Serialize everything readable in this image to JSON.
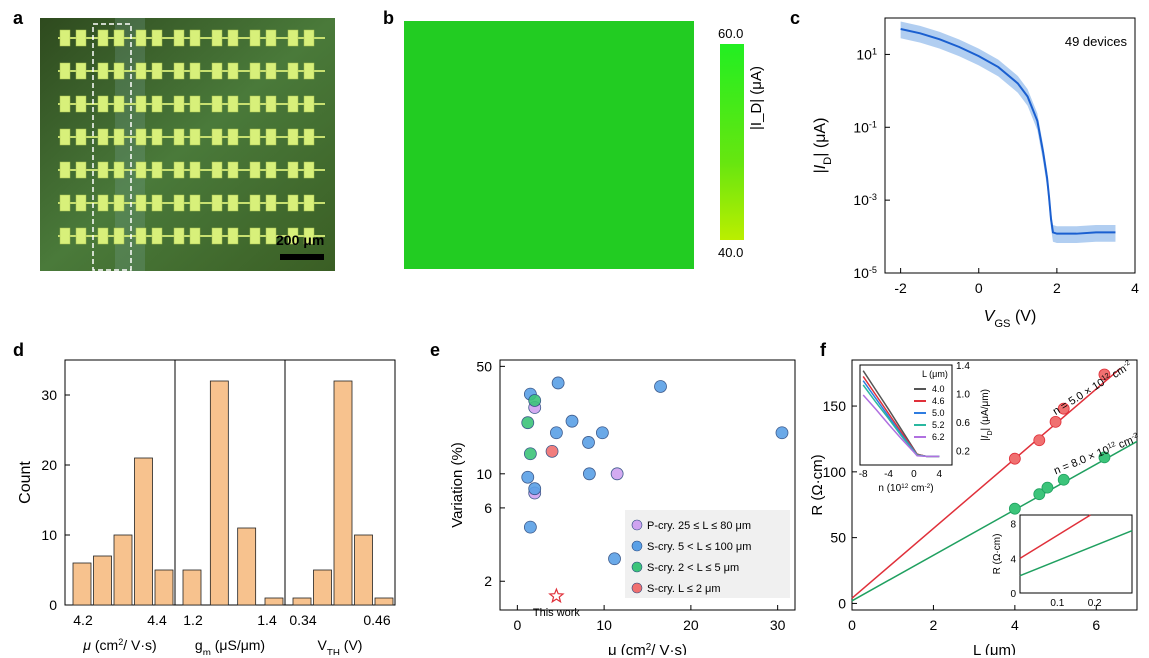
{
  "panel_labels": {
    "a": "a",
    "b": "b",
    "c": "c",
    "d": "d",
    "e": "e",
    "f": "f"
  },
  "colors": {
    "micro_bg": "#3a5a26",
    "map_green": "#22cc22",
    "cbar_top": "#22ee22",
    "cbar_bottom": "#bbee00",
    "curve_mean": "#1a5fd0",
    "curve_band": "#a9c9f0",
    "hist_fill": "#f7c28e",
    "hist_edge": "#222222",
    "purple": "#cfa3f0",
    "blue": "#5aa0e6",
    "green": "#3cc47a",
    "red": "#f07070",
    "fit_red": "#e0303a",
    "fit_green": "#20a060"
  },
  "panel_a": {
    "scale_bar_label": "200 μm",
    "rows": 7,
    "devices_per_row": 7
  },
  "panel_b": {
    "colorbar": {
      "max_label": "60.0",
      "min_label": "40.0",
      "label": "|I_D| (μA)"
    }
  },
  "chart_data": [
    {
      "panel": "c",
      "type": "line",
      "annotation": "49 devices",
      "xlabel": "V_GS (V)",
      "ylabel": "|I_D| (μA)",
      "xlim": [
        -2.4,
        4
      ],
      "ylim_log10": [
        -5,
        2
      ],
      "yscale": "log",
      "xticks": [
        -2,
        0,
        2,
        4
      ],
      "xtick_labels": [
        "-2",
        "0",
        "2",
        "4"
      ],
      "yticks_log10": [
        1,
        -1,
        -3,
        -5
      ],
      "ytick_labels": [
        "10",
        "10",
        "10",
        "10"
      ],
      "ytick_exponents": [
        "1",
        "-1",
        "-3",
        "-5"
      ],
      "series": [
        {
          "x": [
            -2,
            -1.5,
            -1,
            -0.5,
            0,
            0.5,
            1,
            1.25,
            1.5,
            1.65,
            1.75,
            1.8,
            1.85,
            1.9,
            2,
            2.5,
            3,
            3.5
          ],
          "y": [
            50,
            38,
            26,
            16,
            9,
            4.5,
            1.6,
            0.7,
            0.15,
            0.02,
            0.004,
            0.0012,
            0.0003,
            0.00013,
            0.00012,
            0.00012,
            0.00013,
            0.00013
          ]
        }
      ]
    },
    {
      "panel": "d",
      "type": "bar",
      "ylabel": "Count",
      "ylim": [
        0,
        35
      ],
      "yticks": [
        0,
        10,
        20,
        30
      ],
      "ytick_labels": [
        "0",
        "10",
        "20",
        "30"
      ],
      "subplots": [
        {
          "xlabel": "μ (cm²/ V·s)",
          "xtick_labels": [
            "4.2",
            "4.4"
          ],
          "values": [
            6,
            7,
            10,
            21,
            5
          ]
        },
        {
          "xlabel": "g_m (μS/μm)",
          "xtick_labels": [
            "1.2",
            "1.4"
          ],
          "values": [
            5,
            32,
            11,
            1
          ]
        },
        {
          "xlabel": "V_TH (V)",
          "xtick_labels": [
            "0.34",
            "0.46"
          ],
          "values": [
            1,
            5,
            32,
            10,
            1
          ]
        }
      ]
    },
    {
      "panel": "e",
      "type": "scatter",
      "xlabel": "μ (cm²/ V·s)",
      "ylabel": "Variation (%)",
      "xlim": [
        -2,
        32
      ],
      "ylim": [
        1.3,
        55
      ],
      "yscale": "log",
      "xticks": [
        0,
        10,
        20,
        30
      ],
      "xtick_labels": [
        "0",
        "10",
        "20",
        "30"
      ],
      "yticks": [
        2,
        6,
        10,
        50
      ],
      "ytick_labels": [
        "2",
        "6",
        "10",
        "50"
      ],
      "annotation": "This work",
      "series": [
        {
          "name": "P-cry. 25 ≤ L ≤ 80 μm",
          "color_key": "purple",
          "x": [
            2,
            11.5,
            2
          ],
          "y": [
            27,
            10,
            7.5
          ]
        },
        {
          "name": "S-cry. 5 < L ≤ 100 μm",
          "color_key": "blue",
          "x": [
            1.5,
            4.7,
            16.5,
            6.3,
            4.5,
            9.8,
            8.2,
            30.5,
            1.2,
            2,
            8.3,
            1.5,
            11.2
          ],
          "y": [
            33,
            39,
            37,
            22,
            18.5,
            18.5,
            16,
            18.5,
            9.5,
            8,
            10,
            4.5,
            2.8
          ]
        },
        {
          "name": "S-cry. 2 < L ≤ 5 μm",
          "color_key": "green",
          "x": [
            2,
            1.2,
            1.5
          ],
          "y": [
            30,
            21.5,
            13.5
          ]
        },
        {
          "name": "S-cry. L ≤ 2 μm",
          "color_key": "red",
          "x": [
            4
          ],
          "y": [
            14
          ]
        }
      ],
      "this_work": {
        "x": 4.5,
        "y": 1.6
      }
    },
    {
      "panel": "f",
      "type": "scatter",
      "xlabel": "L (μm)",
      "ylabel": "R (Ω·cm)",
      "xlim": [
        0,
        7
      ],
      "ylim": [
        -5,
        185
      ],
      "xticks": [
        0,
        2,
        4,
        6
      ],
      "xtick_labels": [
        "0",
        "2",
        "4",
        "6"
      ],
      "yticks": [
        0,
        50,
        100,
        150
      ],
      "ytick_labels": [
        "0",
        "50",
        "100",
        "150"
      ],
      "series": [
        {
          "name": "n = 5.0 × 10¹² cm⁻²",
          "color_key": "red",
          "x": [
            4,
            4.6,
            5,
            5.2,
            6.2
          ],
          "y": [
            110,
            124,
            138,
            148,
            174
          ],
          "fit": {
            "slope": 26.5,
            "intercept": 4
          }
        },
        {
          "name": "n = 8.0 × 10¹² cm⁻²",
          "color_key": "green",
          "x": [
            4,
            4.6,
            4.8,
            5.2,
            6.2
          ],
          "y": [
            72,
            83,
            88,
            94,
            111
          ],
          "fit": {
            "slope": 17.3,
            "intercept": 2
          }
        }
      ],
      "inset_iv": {
        "xlabel": "n (10¹² cm⁻²)",
        "ylabel": "|I_D| (μA/μm)",
        "xlim": [
          -8.5,
          6
        ],
        "ylim": [
          0,
          1.4
        ],
        "xticks": [
          -8,
          -4,
          0,
          4
        ],
        "xtick_labels": [
          "-8",
          "-4",
          "0",
          "4"
        ],
        "yticks": [
          0.2,
          0.6,
          1.0,
          1.4
        ],
        "ytick_labels": [
          "0.2",
          "0.6",
          "1.0",
          "1.4"
        ],
        "legend_title": "L (μm)",
        "legend": [
          {
            "label": "4.0",
            "color": "#555555"
          },
          {
            "label": "4.6",
            "color": "#e0303a"
          },
          {
            "label": "5.0",
            "color": "#2e7ce0"
          },
          {
            "label": "5.2",
            "color": "#2ab8a0"
          },
          {
            "label": "6.2",
            "color": "#b070e0"
          }
        ],
        "series": [
          {
            "label": "4.0",
            "x": [
              -8,
              -6,
              -4,
              -2,
              0,
              0.5,
              2,
              4
            ],
            "y": [
              1.32,
              1.05,
              0.78,
              0.5,
              0.22,
              0.15,
              0.12,
              0.12
            ]
          },
          {
            "label": "4.6",
            "x": [
              -8,
              -6,
              -4,
              -2,
              0,
              0.5,
              2,
              4
            ],
            "y": [
              1.24,
              0.98,
              0.72,
              0.46,
              0.21,
              0.15,
              0.12,
              0.12
            ]
          },
          {
            "label": "5.0",
            "x": [
              -8,
              -6,
              -4,
              -2,
              0,
              0.5,
              2,
              4
            ],
            "y": [
              1.18,
              0.93,
              0.68,
              0.43,
              0.2,
              0.14,
              0.12,
              0.12
            ]
          },
          {
            "label": "5.2",
            "x": [
              -8,
              -6,
              -4,
              -2,
              0,
              0.5,
              2,
              4
            ],
            "y": [
              1.12,
              0.88,
              0.65,
              0.41,
              0.19,
              0.14,
              0.12,
              0.12
            ]
          },
          {
            "label": "6.2",
            "x": [
              -8,
              -6,
              -4,
              -2,
              0,
              0.5,
              2,
              4
            ],
            "y": [
              0.98,
              0.78,
              0.57,
              0.37,
              0.18,
              0.13,
              0.12,
              0.12
            ]
          }
        ]
      },
      "inset_zoom": {
        "ylabel": "R (Ω·cm)",
        "xlim": [
          0,
          0.3
        ],
        "ylim": [
          0,
          9
        ],
        "xticks": [
          0.1,
          0.2
        ],
        "xtick_labels": [
          "0.1",
          "0.2"
        ],
        "yticks": [
          0,
          4,
          8
        ],
        "ytick_labels": [
          "0",
          "4",
          "8"
        ]
      }
    }
  ]
}
